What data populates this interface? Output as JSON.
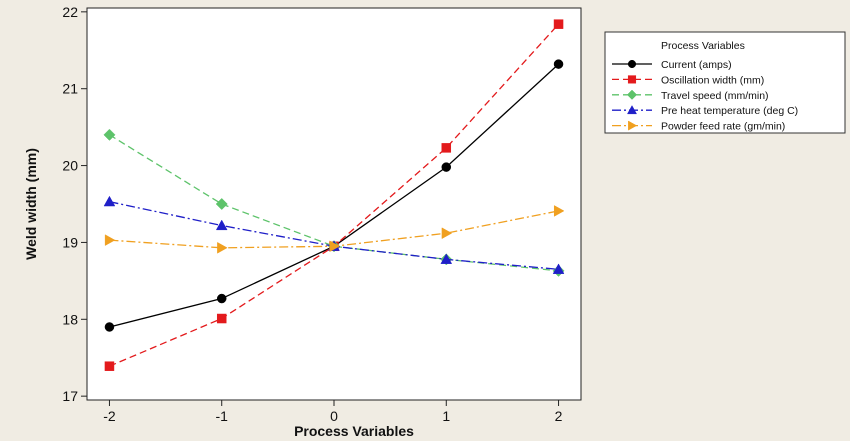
{
  "colors": {
    "background": "#f0ece3",
    "plot_background": "#ffffff",
    "legend_background": "#ffffff"
  },
  "chart_data": {
    "type": "line",
    "title": "",
    "xlabel": "Process Variables",
    "ylabel": "Weld width (mm)",
    "x": [
      -2,
      -1,
      0,
      1,
      2
    ],
    "x_ticks": [
      "-2",
      "-1",
      "0",
      "1",
      "2"
    ],
    "xlim": [
      -2.2,
      2.2
    ],
    "ylim": [
      16.95,
      22.05
    ],
    "y_ticks": [
      17,
      18,
      19,
      20,
      21,
      22
    ],
    "grid": false,
    "legend": {
      "title": "Process Variables",
      "placement": "outside-right"
    },
    "series": [
      {
        "name": "Current (amps)",
        "values": [
          17.9,
          18.27,
          18.95,
          19.98,
          21.32
        ],
        "color": "#000000",
        "marker": "circle",
        "dash": "solid"
      },
      {
        "name": "Oscillation width (mm)",
        "values": [
          17.39,
          18.01,
          18.95,
          20.23,
          21.84
        ],
        "color": "#e31a1c",
        "marker": "square",
        "dash": "dashed"
      },
      {
        "name": "Travel speed (mm/min)",
        "values": [
          20.4,
          19.5,
          18.95,
          18.78,
          18.63
        ],
        "color": "#5dc36a",
        "marker": "diamond",
        "dash": "dashed"
      },
      {
        "name": "Pre heat temperature (deg C)",
        "values": [
          19.53,
          19.22,
          18.95,
          18.78,
          18.65
        ],
        "color": "#1f1fc8",
        "marker": "triangle-up",
        "dash": "dashdot"
      },
      {
        "name": "Powder feed rate (gm/min)",
        "values": [
          19.03,
          18.93,
          18.95,
          19.12,
          19.41
        ],
        "color": "#f0a020",
        "marker": "triangle-right",
        "dash": "dashdot"
      }
    ]
  }
}
